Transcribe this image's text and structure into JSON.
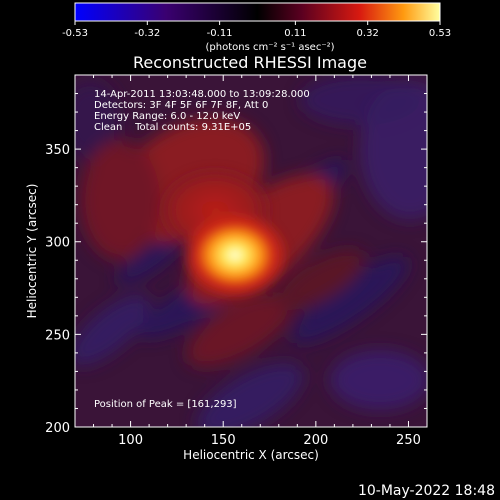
{
  "chart_data": {
    "type": "heatmap",
    "title": "Reconstructed RHESSI Image",
    "xlabel": "Heliocentric X (arcsec)",
    "ylabel": "Heliocentric Y (arcsec)",
    "xlim": [
      70,
      260
    ],
    "ylim": [
      200,
      390
    ],
    "x_ticks": [
      100,
      150,
      200,
      250
    ],
    "y_ticks": [
      200,
      250,
      300,
      350
    ],
    "colorbar": {
      "min": -0.53,
      "max": 0.53,
      "ticks": [
        "-0.53",
        "-0.32",
        "-0.11",
        "0.11",
        "0.32",
        "0.53"
      ],
      "unit_label": "(photons cm⁻² s⁻¹ asec⁻²)"
    },
    "annotations": [
      "14-Apr-2011 13:03:48.000 to 13:09:28.000",
      "Detectors: 3F 4F 5F 6F 7F 8F, Att 0",
      "Energy Range: 6.0 - 12.0 keV",
      "Clean    Total counts: 9.31E+05"
    ],
    "peak_label": "Position of Peak = [161,293]",
    "peak": [
      161,
      293
    ],
    "colors": {
      "background": "#000000",
      "image_base": "#3a1438",
      "positive": "#c0241c",
      "peak": "#fff6c0",
      "negative": "#3a1c66"
    }
  },
  "footer_timestamp": "10-May-2022 18:48"
}
